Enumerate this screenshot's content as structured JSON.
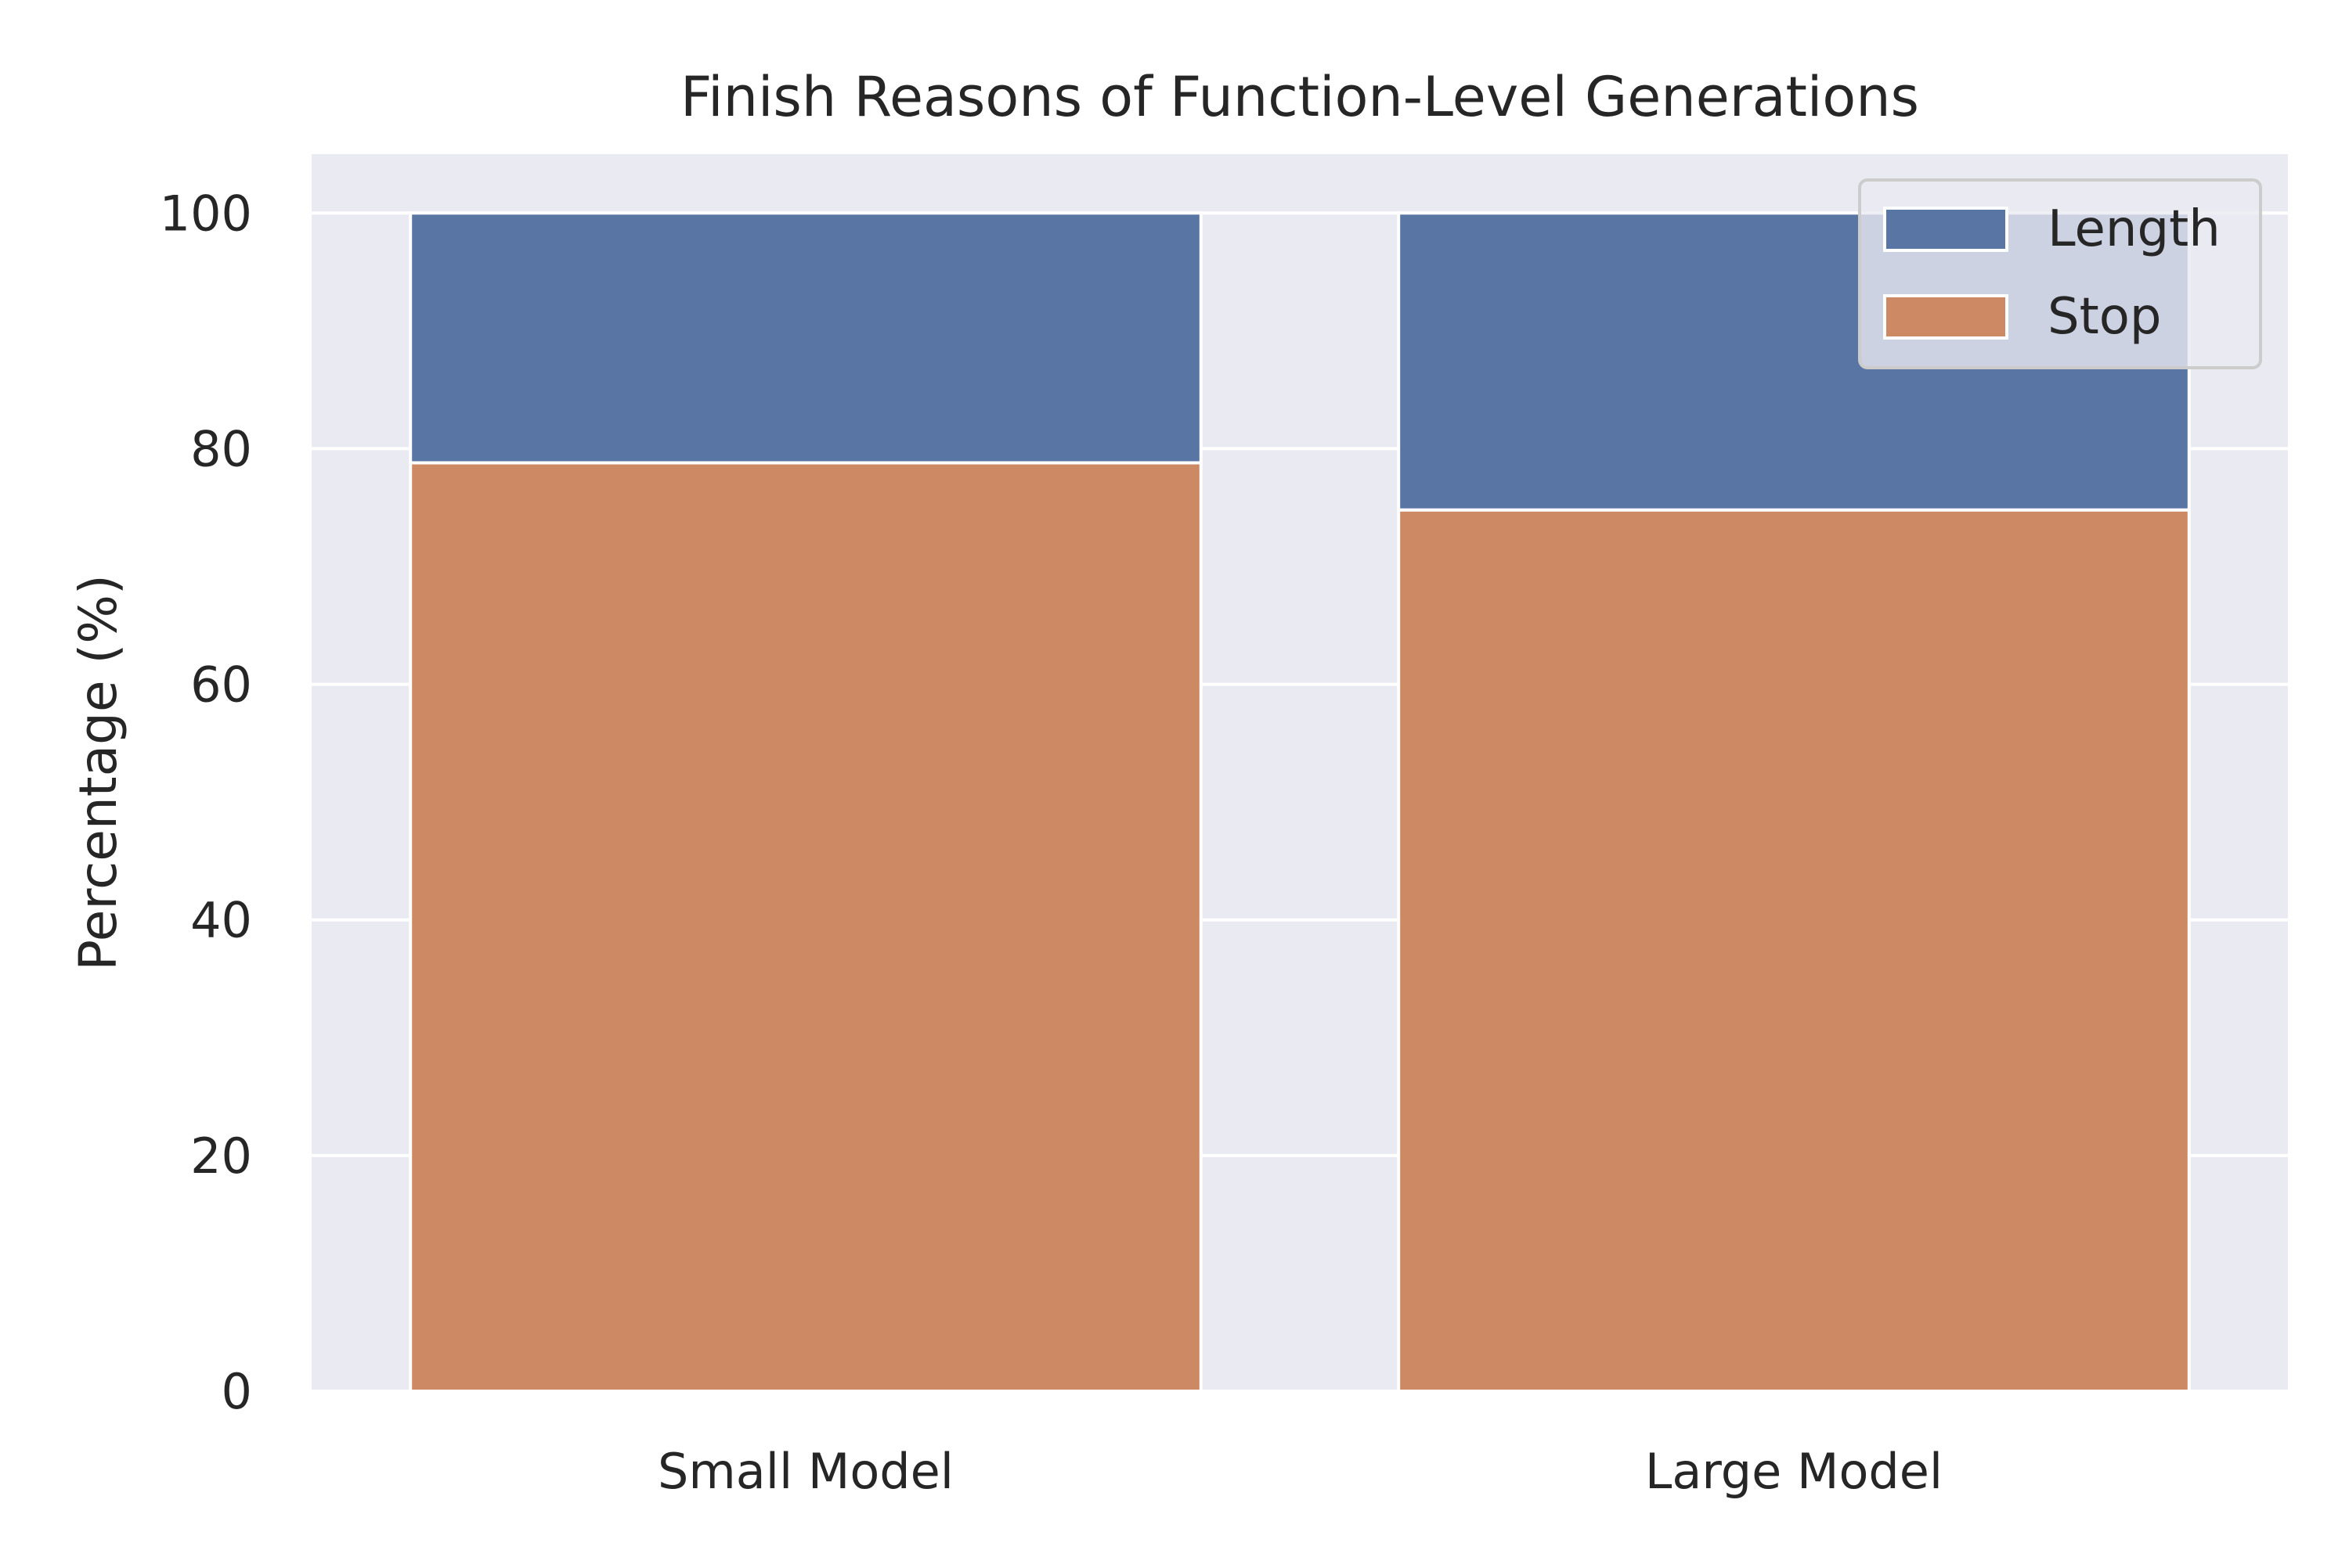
{
  "chart_data": {
    "type": "bar",
    "stacked": true,
    "title": "Finish Reasons of Function-Level Generations",
    "xlabel": "",
    "ylabel": "Percentage (%)",
    "categories": [
      "Small Model",
      "Large Model"
    ],
    "ylim": [
      0,
      105
    ],
    "yticks": [
      0,
      20,
      40,
      60,
      80,
      100
    ],
    "grid": true,
    "legend_position": "top-right",
    "series": [
      {
        "name": "Stop",
        "values": [
          78.8,
          74.8
        ],
        "color": "#cc8963"
      },
      {
        "name": "Length",
        "values": [
          21.2,
          25.2
        ],
        "color": "#5975a4"
      }
    ],
    "legend_order": [
      "Length",
      "Stop"
    ],
    "colors": {
      "plot_background": "#eaeaf2",
      "grid": "#ffffff",
      "text": "#262626"
    }
  }
}
